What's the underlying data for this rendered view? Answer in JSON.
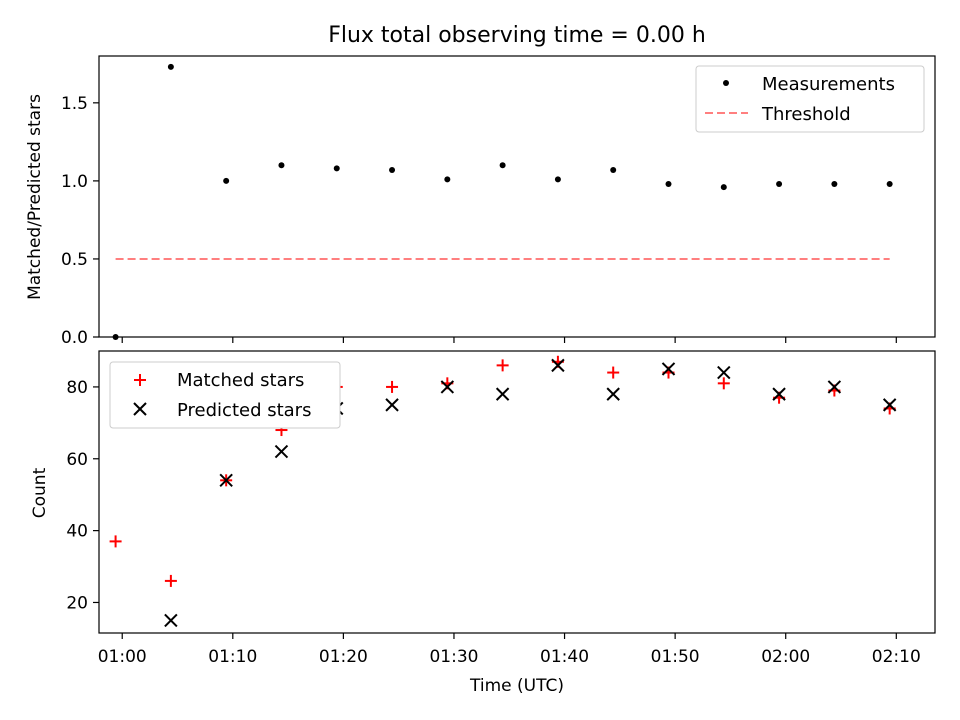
{
  "figure": {
    "title": "Flux total observing time = 0.00 h"
  },
  "chart_data": [
    {
      "type": "scatter",
      "panel": "top",
      "xlabel": "",
      "ylabel": "Matched/Predicted stars",
      "x_tick_labels": [
        "01:00",
        "01:10",
        "01:20",
        "01:30",
        "01:40",
        "01:50",
        "02:00",
        "02:10"
      ],
      "xlim": [
        "00:57:54",
        "02:13:30"
      ],
      "ylim": [
        0,
        1.8
      ],
      "yticks": [
        0.0,
        0.5,
        1.0,
        1.5
      ],
      "ytick_labels": [
        "0.0",
        "0.5",
        "1.0",
        "1.5"
      ],
      "legend_position": "top-right",
      "series": [
        {
          "name": "Measurements",
          "marker": "dot",
          "color": "#000000",
          "x": [
            "00:59:24",
            "01:04:24",
            "01:09:24",
            "01:14:24",
            "01:19:24",
            "01:24:24",
            "01:29:24",
            "01:34:24",
            "01:39:24",
            "01:44:24",
            "01:49:24",
            "01:54:24",
            "01:59:24",
            "02:04:24",
            "02:09:24"
          ],
          "y": [
            0.0,
            1.73,
            1.0,
            1.1,
            1.08,
            1.07,
            1.01,
            1.1,
            1.01,
            1.07,
            0.98,
            0.96,
            0.98,
            0.98,
            0.98
          ]
        },
        {
          "name": "Threshold",
          "line_style": "dashed",
          "color": "#ff7f7f",
          "x": [
            "00:59:24",
            "02:09:24"
          ],
          "y": [
            0.5,
            0.5
          ]
        }
      ]
    },
    {
      "type": "scatter",
      "panel": "bottom",
      "xlabel": "Time (UTC)",
      "ylabel": "Count",
      "x_tick_labels": [
        "01:00",
        "01:10",
        "01:20",
        "01:30",
        "01:40",
        "01:50",
        "02:00",
        "02:10"
      ],
      "xlim": [
        "00:57:54",
        "02:13:30"
      ],
      "ylim": [
        11.5,
        90
      ],
      "yticks": [
        20,
        40,
        60,
        80
      ],
      "ytick_labels": [
        "20",
        "40",
        "60",
        "80"
      ],
      "legend_position": "top-left",
      "series": [
        {
          "name": "Matched stars",
          "marker": "plus",
          "color": "#ff0000",
          "x": [
            "00:59:24",
            "01:04:24",
            "01:09:24",
            "01:14:24",
            "01:19:24",
            "01:24:24",
            "01:29:24",
            "01:34:24",
            "01:39:24",
            "01:44:24",
            "01:49:24",
            "01:54:24",
            "01:59:24",
            "02:04:24",
            "02:09:24"
          ],
          "y": [
            37,
            26,
            54,
            68,
            80,
            80,
            81,
            86,
            87,
            84,
            84,
            81,
            77,
            79,
            74
          ]
        },
        {
          "name": "Predicted stars",
          "marker": "x",
          "color": "#000000",
          "x": [
            "00:59:24",
            "01:04:24",
            "01:09:24",
            "01:14:24",
            "01:19:24",
            "01:24:24",
            "01:29:24",
            "01:34:24",
            "01:39:24",
            "01:44:24",
            "01:49:24",
            "01:54:24",
            "01:59:24",
            "02:04:24",
            "02:09:24"
          ],
          "y": [
            null,
            15,
            54,
            62,
            74,
            75,
            80,
            78,
            86,
            78,
            85,
            84,
            78,
            80,
            75
          ]
        }
      ]
    }
  ]
}
